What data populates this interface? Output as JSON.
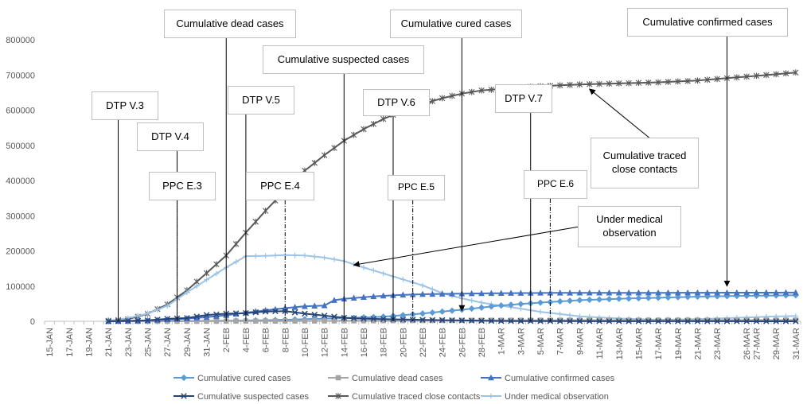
{
  "chart_data": {
    "type": "line",
    "title": "",
    "xlabel": "",
    "ylabel": "",
    "ylim": [
      0,
      800000
    ],
    "yticks": [
      0,
      100000,
      200000,
      300000,
      400000,
      500000,
      600000,
      700000,
      800000
    ],
    "ytick_labels": [
      "0",
      "100000",
      "200000",
      "300000",
      "400000",
      "500000",
      "600000",
      "700000",
      "800000"
    ],
    "x_start": "15-JAN",
    "x_end": "31-MAR",
    "xtick_labels": [
      "15-JAN",
      "17-JAN",
      "19-JAN",
      "21-JAN",
      "23-JAN",
      "25-JAN",
      "27-JAN",
      "29-JAN",
      "31-JAN",
      "2-FEB",
      "4-FEB",
      "6-FEB",
      "8-FEB",
      "10-FEB",
      "12-FEB",
      "14-FEB",
      "16-FEB",
      "18-FEB",
      "20-FEB",
      "22-FEB",
      "24-FEB",
      "26-FEB",
      "28-FEB",
      "1-MAR",
      "3-MAR",
      "5-MAR",
      "7-MAR",
      "9-MAR",
      "11-MAR",
      "13-MAR",
      "15-MAR",
      "17-MAR",
      "19-MAR",
      "21-MAR",
      "23-MAR",
      "26-MAR",
      "27-MAR",
      "29-MAR",
      "31-MAR"
    ],
    "grid": false,
    "legend_position": "bottom",
    "series": [
      {
        "name": "Cumulative cured cases",
        "color": "#5b9bd5",
        "marker": "diamond",
        "points": [
          [
            "21-JAN",
            50
          ],
          [
            "25-JAN",
            200
          ],
          [
            "29-JAN",
            800
          ],
          [
            "2-FEB",
            1500
          ],
          [
            "6-FEB",
            3000
          ],
          [
            "10-FEB",
            6000
          ],
          [
            "14-FEB",
            9000
          ],
          [
            "18-FEB",
            13000
          ],
          [
            "22-FEB",
            22000
          ],
          [
            "26-FEB",
            33000
          ],
          [
            "1-MAR",
            45000
          ],
          [
            "5-MAR",
            53000
          ],
          [
            "9-MAR",
            60000
          ],
          [
            "13-MAR",
            64000
          ],
          [
            "17-MAR",
            67000
          ],
          [
            "21-MAR",
            70000
          ],
          [
            "25-MAR",
            72000
          ],
          [
            "31-MAR",
            74000
          ]
        ]
      },
      {
        "name": "Cumulative dead cases",
        "color": "#a5a5a5",
        "marker": "square",
        "points": [
          [
            "21-JAN",
            10
          ],
          [
            "29-JAN",
            150
          ],
          [
            "6-FEB",
            600
          ],
          [
            "14-FEB",
            1300
          ],
          [
            "22-FEB",
            2300
          ],
          [
            "1-MAR",
            2900
          ],
          [
            "9-MAR",
            3100
          ],
          [
            "17-MAR",
            3200
          ],
          [
            "25-MAR",
            3300
          ],
          [
            "31-MAR",
            3300
          ]
        ]
      },
      {
        "name": "Cumulative confirmed cases",
        "color": "#4472c4",
        "marker": "triangle",
        "points": [
          [
            "21-JAN",
            300
          ],
          [
            "25-JAN",
            2000
          ],
          [
            "29-JAN",
            7700
          ],
          [
            "31-JAN",
            11800
          ],
          [
            "2-FEB",
            17200
          ],
          [
            "4-FEB",
            24300
          ],
          [
            "6-FEB",
            31200
          ],
          [
            "8-FEB",
            37200
          ],
          [
            "10-FEB",
            42600
          ],
          [
            "12-FEB",
            44700
          ],
          [
            "13-FEB",
            59800
          ],
          [
            "14-FEB",
            63800
          ],
          [
            "16-FEB",
            68500
          ],
          [
            "18-FEB",
            72400
          ],
          [
            "20-FEB",
            75100
          ],
          [
            "22-FEB",
            76900
          ],
          [
            "26-FEB",
            78500
          ],
          [
            "1-MAR",
            79800
          ],
          [
            "5-MAR",
            80500
          ],
          [
            "9-MAR",
            80800
          ],
          [
            "15-MAR",
            80900
          ],
          [
            "21-MAR",
            81100
          ],
          [
            "27-MAR",
            81400
          ],
          [
            "31-MAR",
            81500
          ]
        ]
      },
      {
        "name": "Cumulative suspected cases",
        "color": "#264478",
        "marker": "x",
        "points": [
          [
            "21-JAN",
            0
          ],
          [
            "23-JAN",
            1000
          ],
          [
            "25-JAN",
            2700
          ],
          [
            "27-JAN",
            6900
          ],
          [
            "29-JAN",
            9200
          ],
          [
            "31-JAN",
            17900
          ],
          [
            "2-FEB",
            21600
          ],
          [
            "4-FEB",
            23300
          ],
          [
            "6-FEB",
            27700
          ],
          [
            "8-FEB",
            28900
          ],
          [
            "10-FEB",
            21700
          ],
          [
            "12-FEB",
            16100
          ],
          [
            "14-FEB",
            10100
          ],
          [
            "16-FEB",
            7300
          ],
          [
            "18-FEB",
            6200
          ],
          [
            "20-FEB",
            5200
          ],
          [
            "22-FEB",
            4100
          ],
          [
            "26-FEB",
            2400
          ],
          [
            "1-MAR",
            800
          ],
          [
            "5-MAR",
            500
          ],
          [
            "11-MAR",
            300
          ],
          [
            "17-MAR",
            150
          ],
          [
            "23-MAR",
            120
          ],
          [
            "31-MAR",
            100
          ]
        ]
      },
      {
        "name": "Cumulative traced close contacts",
        "color": "#595959",
        "marker": "star",
        "points": [
          [
            "21-JAN",
            1700
          ],
          [
            "23-JAN",
            6000
          ],
          [
            "25-JAN",
            21000
          ],
          [
            "27-JAN",
            48000
          ],
          [
            "29-JAN",
            88000
          ],
          [
            "31-JAN",
            137000
          ],
          [
            "2-FEB",
            187000
          ],
          [
            "4-FEB",
            252000
          ],
          [
            "6-FEB",
            314000
          ],
          [
            "8-FEB",
            372000
          ],
          [
            "10-FEB",
            428000
          ],
          [
            "12-FEB",
            472000
          ],
          [
            "14-FEB",
            513000
          ],
          [
            "16-FEB",
            546000
          ],
          [
            "18-FEB",
            575000
          ],
          [
            "20-FEB",
            598000
          ],
          [
            "22-FEB",
            617000
          ],
          [
            "24-FEB",
            634000
          ],
          [
            "26-FEB",
            647000
          ],
          [
            "28-FEB",
            656000
          ],
          [
            "1-MAR",
            660000
          ],
          [
            "3-MAR",
            665000
          ],
          [
            "5-MAR",
            668000
          ],
          [
            "9-MAR",
            673000
          ],
          [
            "13-MAR",
            676000
          ],
          [
            "17-MAR",
            679000
          ],
          [
            "21-MAR",
            684000
          ],
          [
            "25-MAR",
            693000
          ],
          [
            "29-MAR",
            702000
          ],
          [
            "31-MAR",
            707000
          ]
        ]
      },
      {
        "name": "Under medical observation",
        "color": "#9dc3e6",
        "marker": "plus",
        "points": [
          [
            "21-JAN",
            1000
          ],
          [
            "23-JAN",
            9000
          ],
          [
            "25-JAN",
            22000
          ],
          [
            "27-JAN",
            44000
          ],
          [
            "29-JAN",
            82000
          ],
          [
            "31-JAN",
            118000
          ],
          [
            "2-FEB",
            153000
          ],
          [
            "4-FEB",
            185000
          ],
          [
            "6-FEB",
            186000
          ],
          [
            "8-FEB",
            188000
          ],
          [
            "10-FEB",
            187000
          ],
          [
            "12-FEB",
            181000
          ],
          [
            "14-FEB",
            171000
          ],
          [
            "16-FEB",
            153000
          ],
          [
            "18-FEB",
            136000
          ],
          [
            "20-FEB",
            119000
          ],
          [
            "22-FEB",
            102000
          ],
          [
            "24-FEB",
            80000
          ],
          [
            "26-FEB",
            65000
          ],
          [
            "28-FEB",
            53000
          ],
          [
            "1-MAR",
            44000
          ],
          [
            "3-MAR",
            36000
          ],
          [
            "5-MAR",
            27000
          ],
          [
            "9-MAR",
            14000
          ],
          [
            "13-MAR",
            8000
          ],
          [
            "17-MAR",
            4500
          ],
          [
            "21-MAR",
            6000
          ],
          [
            "25-MAR",
            10000
          ],
          [
            "29-MAR",
            14000
          ],
          [
            "31-MAR",
            15000
          ]
        ]
      }
    ],
    "annotations": [
      {
        "id": "dead",
        "text": "Cumulative dead cases",
        "date": "2-FEB",
        "arrow_to": 0
      },
      {
        "id": "cured",
        "text": "Cumulative cured cases",
        "date": "26-FEB",
        "arrow_to": 30000
      },
      {
        "id": "confirmed",
        "text": "Cumulative confirmed cases",
        "date": "24-MAR",
        "arrow_to": 100000
      },
      {
        "id": "suspected",
        "text": "Cumulative suspected cases",
        "date": "14-FEB",
        "arrow_to": 0
      },
      {
        "id": "dtp3",
        "text": "DTP V.3",
        "date": "22-JAN",
        "arrow_to": 0
      },
      {
        "id": "dtp4",
        "text": "DTP V.4",
        "date": "28-JAN",
        "arrow_to": 0
      },
      {
        "id": "dtp5",
        "text": "DTP V.5",
        "date": "4-FEB",
        "arrow_to": 0
      },
      {
        "id": "dtp6",
        "text": "DTP V.6",
        "date": "19-FEB",
        "arrow_to": 0
      },
      {
        "id": "dtp7",
        "text": "DTP V.7",
        "date": "4-MAR",
        "arrow_to": 0
      },
      {
        "id": "ppc3",
        "text": "PPC E.3",
        "date": "28-JAN",
        "arrow_to": 0
      },
      {
        "id": "ppc4",
        "text": "PPC E.4",
        "date": "8-FEB",
        "arrow_to": 0
      },
      {
        "id": "ppc5",
        "text": "PPC E.5",
        "date": "21-FEB",
        "arrow_to": 0
      },
      {
        "id": "ppc6",
        "text": "PPC E.6",
        "date": "6-MAR",
        "arrow_to": 0
      },
      {
        "id": "traced",
        "text": "Cumulative traced close contacts",
        "date": "10-MAR",
        "arrow_to": 660000
      },
      {
        "id": "observation",
        "text": "Under medical observation",
        "date": "15-FEB",
        "arrow_to": 160000
      }
    ]
  }
}
